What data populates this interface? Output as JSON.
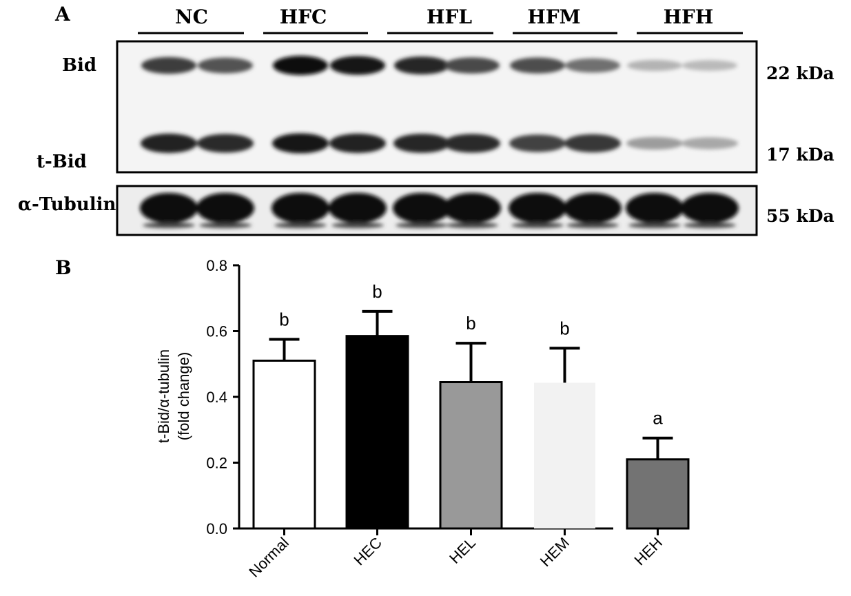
{
  "panel_a": {
    "label": "A",
    "groups": [
      "NC",
      "HFC",
      "HFL",
      "HFM",
      "HFH"
    ],
    "row_labels": {
      "bid": "Bid",
      "tbid": "t-Bid",
      "tubulin": "α-Tubulin"
    },
    "weights": {
      "bid": "22 kDa",
      "tbid": "17 kDa",
      "tubulin": "55 kDa"
    },
    "bid_band_intensity": [
      0.78,
      0.68,
      1.0,
      0.95,
      0.88,
      0.72,
      0.7,
      0.55,
      0.25,
      0.22
    ],
    "tbid_band_intensity": [
      0.9,
      0.85,
      0.95,
      0.9,
      0.88,
      0.85,
      0.75,
      0.8,
      0.35,
      0.3
    ]
  },
  "panel_b": {
    "label": "B"
  },
  "chart_data": {
    "type": "bar",
    "categories": [
      "Normal",
      "HEC",
      "HEL",
      "HEM",
      "HEH"
    ],
    "values": [
      0.51,
      0.585,
      0.445,
      0.443,
      0.21
    ],
    "errors": [
      0.065,
      0.075,
      0.118,
      0.105,
      0.065
    ],
    "significance": [
      "b",
      "b",
      "b",
      "b",
      "a"
    ],
    "bar_fills": [
      "#ffffff",
      "#000000",
      "#999999",
      "#f2f2f2",
      "#737373"
    ],
    "ylabel_line1": "t-Bid/α-tubulin",
    "ylabel_line2": "(fold change)",
    "ylim": [
      0,
      0.8
    ],
    "yticks": [
      "0.0",
      "0.2",
      "0.4",
      "0.6",
      "0.8"
    ],
    "grid": false
  }
}
